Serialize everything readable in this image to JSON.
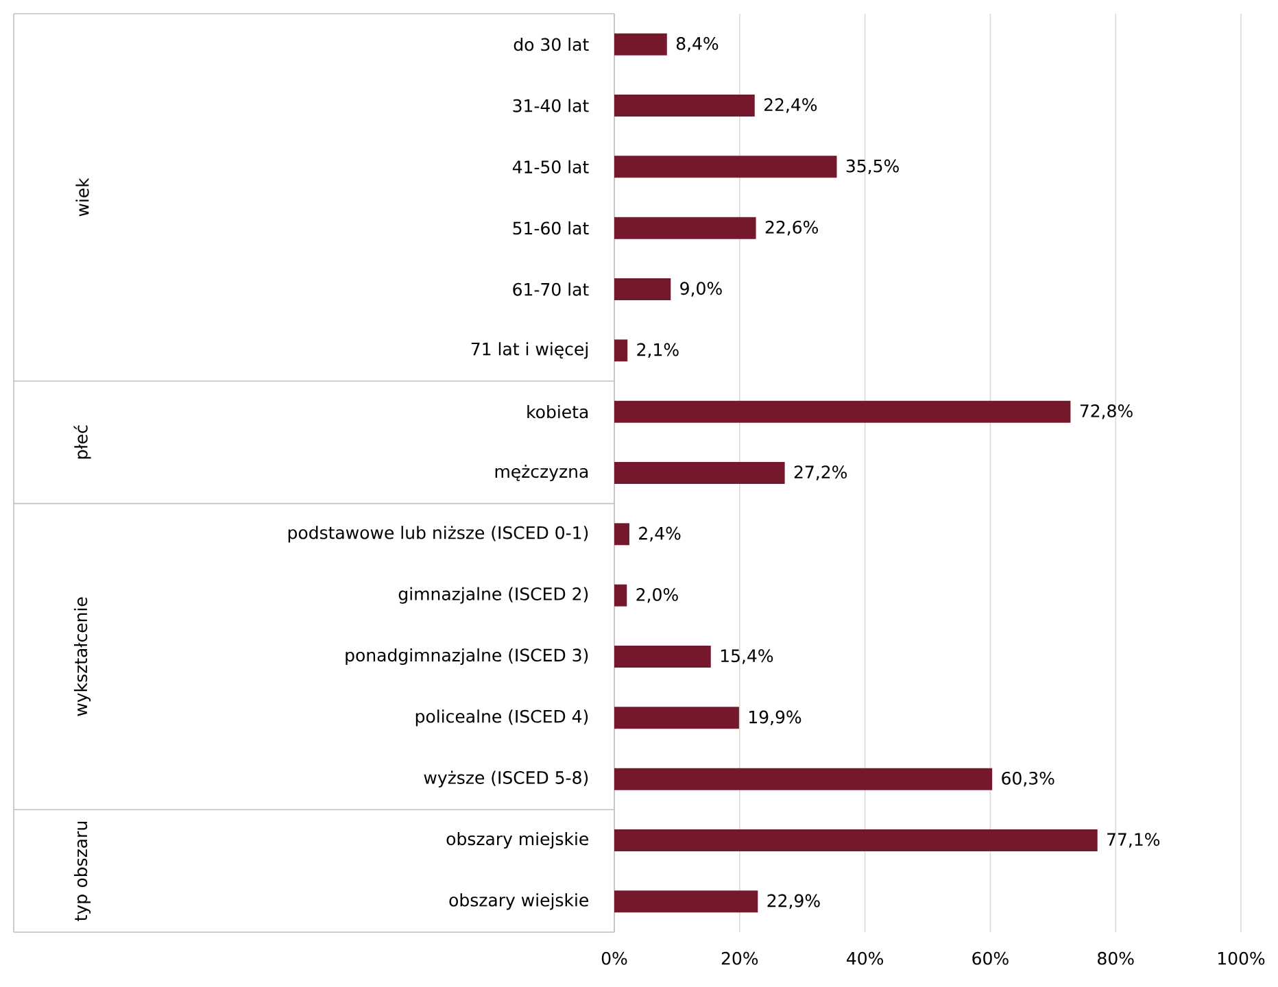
{
  "chart_data": {
    "type": "bar",
    "orientation": "horizontal",
    "color": "#76182c",
    "grid": "x",
    "categories": [
      "do 30 lat",
      "31-40 lat",
      "41-50 lat",
      "51-60 lat",
      "61-70 lat",
      "71 lat i więcej",
      "kobieta",
      "mężczyzna",
      "podstawowe lub niższe (ISCED 0-1)",
      "gimnazjalne (ISCED 2)",
      "ponadgimnazjalne (ISCED 3)",
      "policealne (ISCED 4)",
      "wyższe (ISCED 5-8)",
      "obszary miejskie",
      "obszary wiejskie"
    ],
    "values": [
      8.4,
      22.4,
      35.5,
      22.6,
      9.0,
      2.1,
      72.8,
      27.2,
      2.4,
      2.0,
      15.4,
      19.9,
      60.3,
      77.1,
      22.9
    ],
    "value_labels": [
      "8,4%",
      "22,4%",
      "35,5%",
      "22,6%",
      "9,0%",
      "2,1%",
      "72,8%",
      "27,2%",
      "2,4%",
      "2,0%",
      "15,4%",
      "19,9%",
      "60,3%",
      "77,1%",
      "22,9%"
    ],
    "xlim": [
      0,
      100
    ],
    "xticks": [
      {
        "value": 0,
        "label": "0%"
      },
      {
        "value": 20,
        "label": "20%"
      },
      {
        "value": 40,
        "label": "40%"
      },
      {
        "value": 60,
        "label": "60%"
      },
      {
        "value": 80,
        "label": "80%"
      },
      {
        "value": 100,
        "label": "100%"
      }
    ],
    "annotations": [
      "wiek",
      "płeć",
      "wykształcenie",
      "typ obszaru"
    ]
  }
}
